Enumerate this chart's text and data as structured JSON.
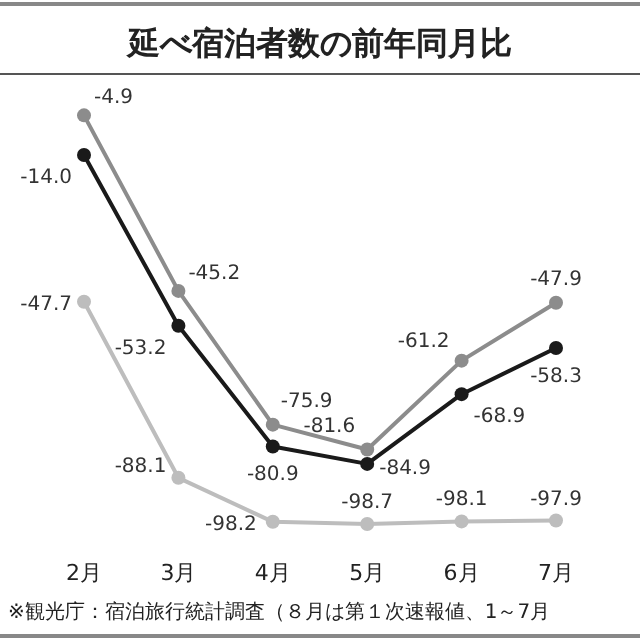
{
  "chart_data": {
    "type": "line",
    "title": "延べ宿泊者数の前年同月比",
    "categories": [
      "2月",
      "3月",
      "4月",
      "5月",
      "6月",
      "7月"
    ],
    "series": [
      {
        "color": "#1a1a1a",
        "values": [
          -14.0,
          -53.2,
          -80.9,
          -84.9,
          -68.9,
          -58.3
        ],
        "value_labels": [
          "-14.0",
          "-53.2",
          "-80.9",
          "-84.9",
          "-68.9",
          "-58.3"
        ]
      },
      {
        "color": "#8c8c8c",
        "values": [
          -4.9,
          -45.2,
          -75.9,
          -81.6,
          -61.2,
          -47.9
        ],
        "value_labels": [
          "-4.9",
          "-45.2",
          "-75.9",
          "-81.6",
          "-61.2",
          "-47.9"
        ]
      },
      {
        "color": "#bdbdbd",
        "values": [
          -47.7,
          -88.1,
          -98.2,
          -98.7,
          -98.1,
          -97.9
        ],
        "value_labels": [
          "-47.7",
          "-88.1",
          "-98.2",
          "-98.7",
          "-98.1",
          "-97.9"
        ]
      }
    ],
    "marker": "circle",
    "annotations": [
      "※観光庁：宿泊旅行統計調査（８月は第１次速報値、1～7月"
    ]
  }
}
